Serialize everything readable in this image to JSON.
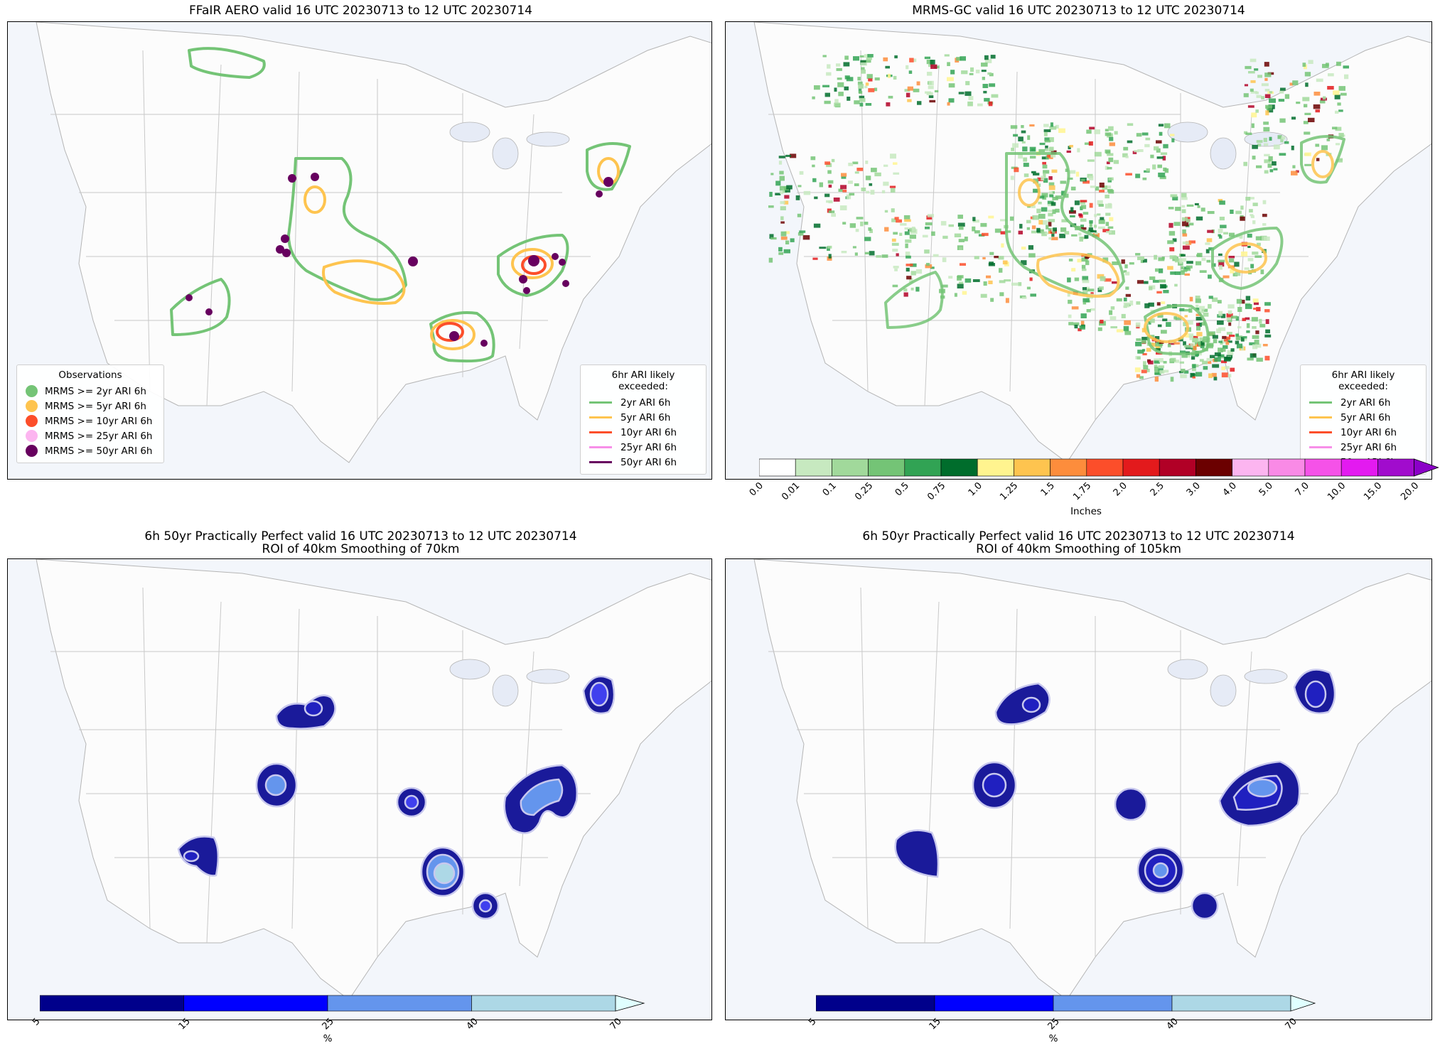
{
  "panels": {
    "top_left": {
      "title": "FFaIR AERO valid 16 UTC 20230713 to 12 UTC 20230714"
    },
    "top_right": {
      "title": "MRMS-GC valid 16 UTC 20230713 to 12 UTC 20230714"
    },
    "bottom_left": {
      "title": "6h 50yr Practically Perfect valid 16 UTC 20230713 to 12 UTC 20230714\nROI of 40km Smoothing of 70km"
    },
    "bottom_right": {
      "title": "6h 50yr Practically Perfect valid 16 UTC 20230713 to 12 UTC 20230714\nROI of 40km Smoothing of 105km"
    }
  },
  "obs_legend": {
    "title": "Observations",
    "items": [
      {
        "label": "MRMS >= 2yr ARI 6h",
        "color": "#74c476"
      },
      {
        "label": "MRMS >= 5yr ARI 6h",
        "color": "#fec44f"
      },
      {
        "label": "MRMS >= 10yr ARI 6h",
        "color": "#fc4e2a"
      },
      {
        "label": "MRMS >= 25yr ARI 6h",
        "color": "#fcb5f0"
      },
      {
        "label": "MRMS >= 50yr ARI 6h",
        "color": "#67005f"
      }
    ]
  },
  "ari_legend": {
    "title": "6hr ARI likely exceeded:",
    "items": [
      {
        "label": "2yr ARI 6h",
        "color": "#74c476"
      },
      {
        "label": "5yr ARI 6h",
        "color": "#fec44f"
      },
      {
        "label": "10yr ARI 6h",
        "color": "#fc4e2a"
      },
      {
        "label": "25yr ARI 6h",
        "color": "#f78fe8"
      },
      {
        "label": "50yr ARI 6h",
        "color": "#67005f"
      }
    ]
  },
  "precip_colorbar": {
    "label": "Inches",
    "ticks": [
      "0.0",
      "0.01",
      "0.1",
      "0.25",
      "0.5",
      "0.75",
      "1.0",
      "1.25",
      "1.5",
      "1.75",
      "2.0",
      "2.5",
      "3.0",
      "4.0",
      "5.0",
      "7.0",
      "10.0",
      "15.0",
      "20.0"
    ],
    "colors": [
      "#ffffff",
      "#c7e9c0",
      "#a1d99b",
      "#74c476",
      "#31a354",
      "#006d2c",
      "#fff48f",
      "#fec44f",
      "#fd8d3c",
      "#fc4e2a",
      "#e31a1c",
      "#b10026",
      "#6b0000",
      "#fcb5f0",
      "#f98ae6",
      "#f552e8",
      "#e31af0",
      "#a10ccd"
    ],
    "extend_color": "#8b00c8"
  },
  "prob_colorbar": {
    "label": "%",
    "ticks": [
      "5",
      "15",
      "25",
      "40",
      "70"
    ],
    "colors": [
      "#00008b",
      "#0000ff",
      "#6495ed",
      "#add8e6"
    ],
    "extend_color": "#e0ffff"
  }
}
